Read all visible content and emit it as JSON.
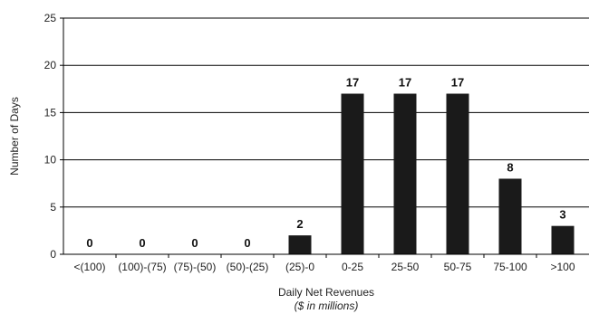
{
  "chart_data": {
    "type": "bar",
    "categories": [
      "<(100)",
      "(100)-(75)",
      "(75)-(50)",
      "(50)-(25)",
      "(25)-0",
      "0-25",
      "25-50",
      "50-75",
      "75-100",
      ">100"
    ],
    "values": [
      0,
      0,
      0,
      0,
      2,
      17,
      17,
      17,
      8,
      3
    ],
    "data_labels": [
      "0",
      "0",
      "0",
      "0",
      "2",
      "17",
      "17",
      "17",
      "8",
      "3"
    ],
    "xlabel": "Daily Net Revenues",
    "xlabel_sub": "($ in millions)",
    "ylabel": "Number of Days",
    "ylim": [
      0,
      25
    ],
    "yticks": [
      0,
      5,
      10,
      15,
      20,
      25
    ],
    "grid": true,
    "bar_color": "#1a1a1a"
  }
}
